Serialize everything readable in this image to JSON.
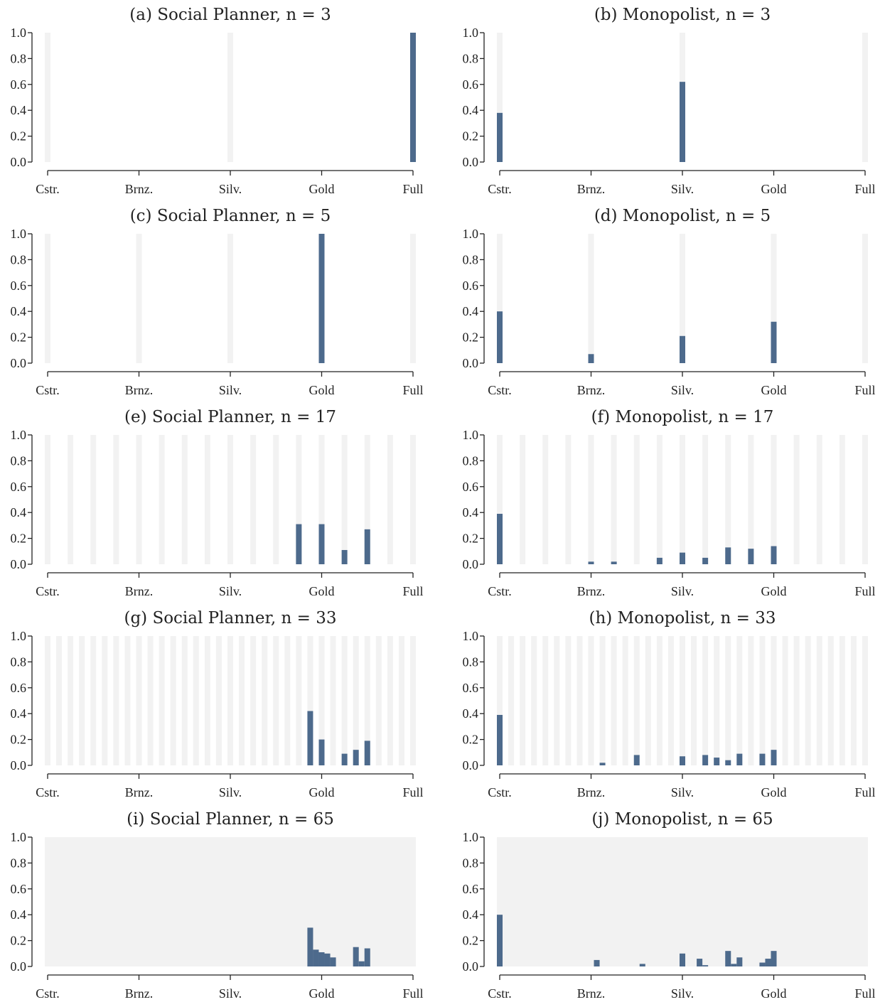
{
  "chart_data": [
    {
      "type": "bar",
      "title": "(a) Social Planner, n = 3",
      "n": 3,
      "categories": [
        "Cstr.",
        "Brnz.",
        "Silv.",
        "Gold",
        "Full"
      ],
      "yticks": [
        "0.0",
        "0.2",
        "0.4",
        "0.6",
        "0.8",
        "1.0"
      ],
      "ylim": [
        0,
        1
      ],
      "x": [
        0,
        0.5,
        1
      ],
      "values": [
        0,
        0,
        1.0
      ]
    },
    {
      "type": "bar",
      "title": "(b) Monopolist, n = 3",
      "n": 3,
      "categories": [
        "Cstr.",
        "Brnz.",
        "Silv.",
        "Gold",
        "Full"
      ],
      "yticks": [
        "0.0",
        "0.2",
        "0.4",
        "0.6",
        "0.8",
        "1.0"
      ],
      "ylim": [
        0,
        1
      ],
      "x": [
        0,
        0.5,
        1
      ],
      "values": [
        0.38,
        0.62,
        0
      ]
    },
    {
      "type": "bar",
      "title": "(c) Social Planner, n = 5",
      "n": 5,
      "categories": [
        "Cstr.",
        "Brnz.",
        "Silv.",
        "Gold",
        "Full"
      ],
      "yticks": [
        "0.0",
        "0.2",
        "0.4",
        "0.6",
        "0.8",
        "1.0"
      ],
      "ylim": [
        0,
        1
      ],
      "x": [
        0,
        0.25,
        0.5,
        0.75,
        1
      ],
      "values": [
        0,
        0,
        0,
        1.0,
        0
      ]
    },
    {
      "type": "bar",
      "title": "(d) Monopolist, n = 5",
      "n": 5,
      "categories": [
        "Cstr.",
        "Brnz.",
        "Silv.",
        "Gold",
        "Full"
      ],
      "yticks": [
        "0.0",
        "0.2",
        "0.4",
        "0.6",
        "0.8",
        "1.0"
      ],
      "ylim": [
        0,
        1
      ],
      "x": [
        0,
        0.25,
        0.5,
        0.75,
        1
      ],
      "values": [
        0.4,
        0.07,
        0.21,
        0.32,
        0
      ]
    },
    {
      "type": "bar",
      "title": "(e) Social Planner, n = 17",
      "n": 17,
      "categories": [
        "Cstr.",
        "Brnz.",
        "Silv.",
        "Gold",
        "Full"
      ],
      "yticks": [
        "0.0",
        "0.2",
        "0.4",
        "0.6",
        "0.8",
        "1.0"
      ],
      "ylim": [
        0,
        1
      ],
      "x": [
        0.6875,
        0.75,
        0.8125,
        0.875
      ],
      "values": [
        0.31,
        0.31,
        0.11,
        0.27
      ]
    },
    {
      "type": "bar",
      "title": "(f) Monopolist, n = 17",
      "n": 17,
      "categories": [
        "Cstr.",
        "Brnz.",
        "Silv.",
        "Gold",
        "Full"
      ],
      "yticks": [
        "0.0",
        "0.2",
        "0.4",
        "0.6",
        "0.8",
        "1.0"
      ],
      "ylim": [
        0,
        1
      ],
      "x": [
        0,
        0.25,
        0.3125,
        0.4375,
        0.5,
        0.5625,
        0.625,
        0.6875,
        0.75
      ],
      "values": [
        0.39,
        0.02,
        0.02,
        0.05,
        0.09,
        0.05,
        0.13,
        0.12,
        0.14
      ]
    },
    {
      "type": "bar",
      "title": "(g) Social Planner, n = 33",
      "n": 33,
      "categories": [
        "Cstr.",
        "Brnz.",
        "Silv.",
        "Gold",
        "Full"
      ],
      "yticks": [
        "0.0",
        "0.2",
        "0.4",
        "0.6",
        "0.8",
        "1.0"
      ],
      "ylim": [
        0,
        1
      ],
      "x": [
        0.71875,
        0.75,
        0.8125,
        0.84375,
        0.875
      ],
      "values": [
        0.42,
        0.2,
        0.09,
        0.12,
        0.19
      ]
    },
    {
      "type": "bar",
      "title": "(h) Monopolist, n = 33",
      "n": 33,
      "categories": [
        "Cstr.",
        "Brnz.",
        "Silv.",
        "Gold",
        "Full"
      ],
      "yticks": [
        "0.0",
        "0.2",
        "0.4",
        "0.6",
        "0.8",
        "1.0"
      ],
      "ylim": [
        0,
        1
      ],
      "x": [
        0,
        0.28125,
        0.375,
        0.5,
        0.5625,
        0.59375,
        0.625,
        0.65625,
        0.71875,
        0.75
      ],
      "values": [
        0.39,
        0.02,
        0.08,
        0.07,
        0.08,
        0.06,
        0.04,
        0.09,
        0.09,
        0.12
      ]
    },
    {
      "type": "bar",
      "title": "(i) Social Planner, n = 65",
      "n": 65,
      "categories": [
        "Cstr.",
        "Brnz.",
        "Silv.",
        "Gold",
        "Full"
      ],
      "yticks": [
        "0.0",
        "0.2",
        "0.4",
        "0.6",
        "0.8",
        "1.0"
      ],
      "ylim": [
        0,
        1
      ],
      "x": [
        0.71875,
        0.734375,
        0.75,
        0.765625,
        0.78125,
        0.84375,
        0.859375,
        0.875
      ],
      "values": [
        0.3,
        0.13,
        0.11,
        0.1,
        0.07,
        0.15,
        0.04,
        0.14
      ]
    },
    {
      "type": "bar",
      "title": "(j) Monopolist, n = 65",
      "n": 65,
      "categories": [
        "Cstr.",
        "Brnz.",
        "Silv.",
        "Gold",
        "Full"
      ],
      "yticks": [
        "0.0",
        "0.2",
        "0.4",
        "0.6",
        "0.8",
        "1.0"
      ],
      "ylim": [
        0,
        1
      ],
      "x": [
        0,
        0.265625,
        0.390625,
        0.5,
        0.546875,
        0.5625,
        0.625,
        0.640625,
        0.65625,
        0.71875,
        0.734375,
        0.75
      ],
      "values": [
        0.4,
        0.05,
        0.02,
        0.1,
        0.06,
        0.01,
        0.12,
        0.02,
        0.07,
        0.03,
        0.06,
        0.12
      ]
    }
  ],
  "colors": {
    "bar": "#4d6a8c",
    "stripe": "#f2f2f2",
    "axis": "#222222"
  }
}
